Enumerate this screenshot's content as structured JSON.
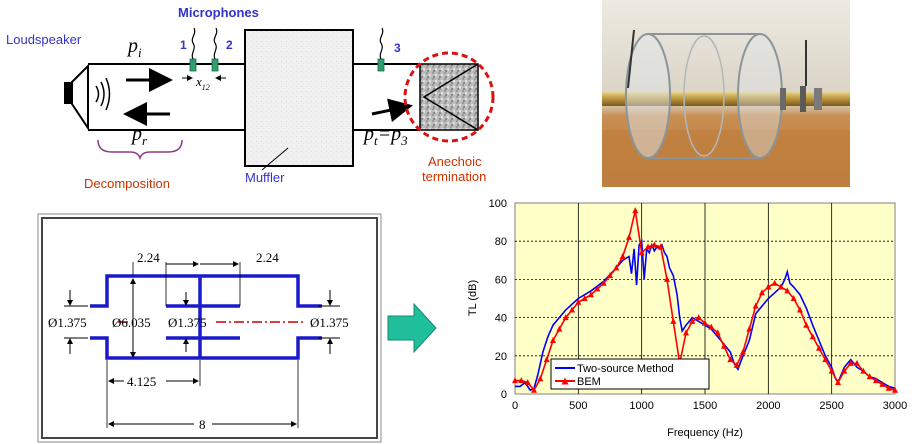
{
  "schematic": {
    "loudspeaker": "Loudspeaker",
    "microphones": "Microphones",
    "mic_numbers": [
      "1",
      "2",
      "3"
    ],
    "p_i": "p",
    "p_i_sub": "i",
    "p_r": "p",
    "p_r_sub": "r",
    "x12": "x",
    "x12_sub": "12",
    "p_t": "p",
    "p_t_sub": "t",
    "p_t_eq": "=p",
    "p_t_eq_sub": "3",
    "decomposition": "Decomposition",
    "muffler": "Muffler",
    "anechoic_line1": "Anechoic",
    "anechoic_line2": "termination"
  },
  "dimensions": {
    "d_224_left": "2.24",
    "d_224_right": "2.24",
    "d_1375_left": "Ø1.375",
    "d_6035": "Ø6.035",
    "d_1375_mid": "Ø1.375",
    "d_1375_right": "Ø1.375",
    "d_4125": "4.125",
    "d_8": "8"
  },
  "colors": {
    "blue_label": "#3333cc",
    "red_label": "#cc3300",
    "muffler_blue": "#1a1acc",
    "centerline_red": "#cc0000",
    "arrow_teal": "#1fbf9c",
    "mic_green": "#2e9e6e",
    "plot_bg": "#ffffc8",
    "series_blue": "#0000ff",
    "series_red": "#ff0000"
  },
  "chart_data": {
    "type": "line",
    "title": "",
    "xlabel": "Frequency (Hz)",
    "ylabel": "TL (dB)",
    "xlim": [
      0,
      3000
    ],
    "ylim": [
      0,
      100
    ],
    "xticks": [
      "0",
      "500",
      "1000",
      "1500",
      "2000",
      "2500",
      "3000"
    ],
    "yticks": [
      "0",
      "20",
      "40",
      "60",
      "80",
      "100"
    ],
    "grid": true,
    "legend": "bottom-left",
    "series": [
      {
        "name": "Two-source Method",
        "color": "#0000ff",
        "x": [
          0,
          40,
          80,
          120,
          150,
          180,
          220,
          260,
          300,
          350,
          400,
          450,
          500,
          600,
          700,
          800,
          850,
          900,
          920,
          940,
          960,
          980,
          1000,
          1020,
          1040,
          1060,
          1080,
          1100,
          1120,
          1140,
          1160,
          1180,
          1200,
          1220,
          1250,
          1280,
          1300,
          1320,
          1350,
          1400,
          1450,
          1500,
          1550,
          1600,
          1650,
          1700,
          1730,
          1760,
          1800,
          1850,
          1900,
          1950,
          2000,
          2050,
          2100,
          2130,
          2150,
          2170,
          2200,
          2250,
          2300,
          2350,
          2400,
          2450,
          2500,
          2530,
          2550,
          2600,
          2650,
          2700,
          2750,
          2800,
          2850,
          2900,
          2950,
          3000
        ],
        "y": [
          4,
          4,
          6,
          2,
          3,
          10,
          22,
          30,
          36,
          40,
          44,
          47,
          50,
          54,
          59,
          66,
          70,
          72,
          63,
          76,
          57,
          78,
          80,
          60,
          76,
          74,
          78,
          75,
          77,
          76,
          78,
          74,
          72,
          66,
          62,
          52,
          40,
          33,
          36,
          40,
          38,
          36,
          34,
          30,
          26,
          22,
          16,
          13,
          20,
          28,
          42,
          46,
          50,
          53,
          56,
          60,
          64,
          58,
          56,
          52,
          45,
          36,
          28,
          20,
          14,
          8,
          6,
          14,
          18,
          14,
          12,
          9,
          8,
          6,
          4,
          3
        ]
      },
      {
        "name": "BEM",
        "color": "#ff0000",
        "x": [
          0,
          50,
          100,
          150,
          200,
          250,
          300,
          350,
          400,
          450,
          500,
          550,
          600,
          650,
          700,
          750,
          800,
          850,
          900,
          950,
          1000,
          1050,
          1100,
          1150,
          1200,
          1250,
          1300,
          1350,
          1400,
          1450,
          1500,
          1550,
          1600,
          1650,
          1700,
          1750,
          1800,
          1850,
          1900,
          1950,
          2000,
          2050,
          2100,
          2150,
          2200,
          2250,
          2300,
          2350,
          2400,
          2450,
          2500,
          2550,
          2600,
          2650,
          2700,
          2750,
          2800,
          2850,
          2900,
          2950,
          3000
        ],
        "y": [
          7,
          7,
          6,
          2,
          8,
          18,
          28,
          34,
          40,
          44,
          48,
          50,
          52,
          55,
          58,
          62,
          66,
          72,
          82,
          96,
          74,
          77,
          78,
          77,
          60,
          38,
          16,
          32,
          38,
          40,
          37,
          35,
          32,
          25,
          18,
          15,
          22,
          34,
          46,
          53,
          56,
          58,
          56,
          54,
          50,
          44,
          36,
          30,
          24,
          18,
          12,
          6,
          12,
          16,
          16,
          12,
          9,
          7,
          5,
          3,
          2
        ]
      }
    ]
  }
}
